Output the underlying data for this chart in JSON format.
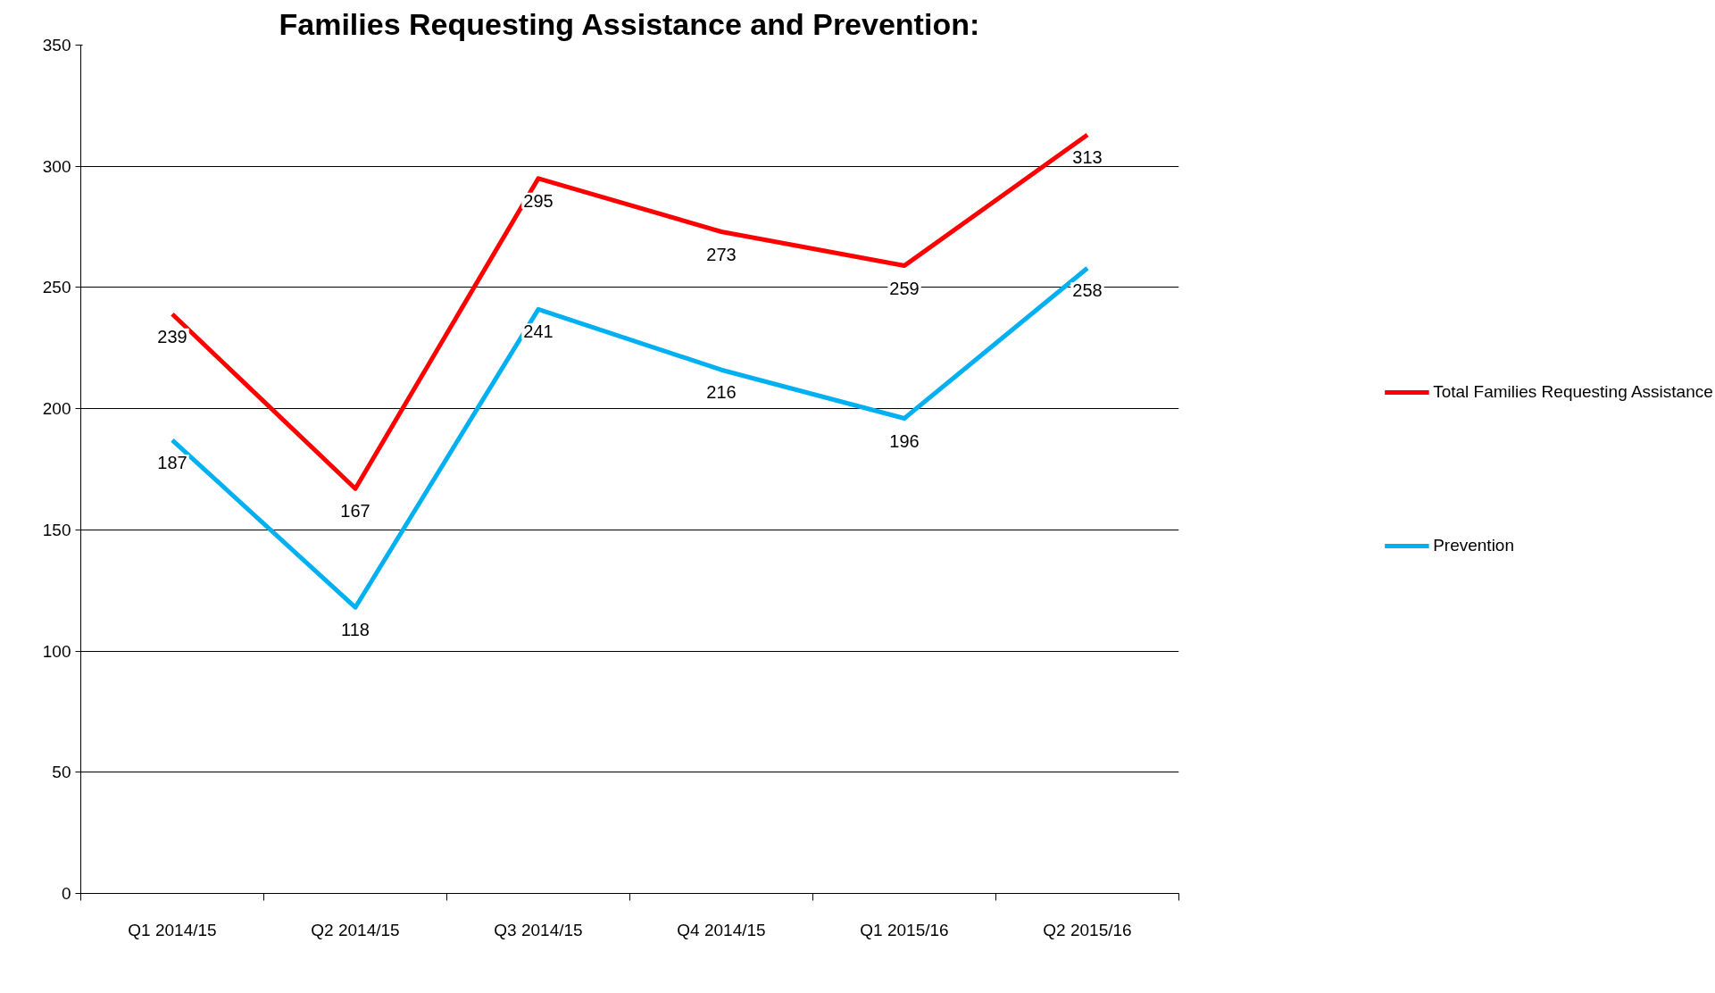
{
  "chart_data": {
    "type": "line",
    "title": "Families Requesting Assistance and Prevention:",
    "categories": [
      "Q1 2014/15",
      "Q2 2014/15",
      "Q3 2014/15",
      "Q4 2014/15",
      "Q1 2015/16",
      "Q2 2015/16"
    ],
    "series": [
      {
        "name": "Total Families Requesting Assistance",
        "color": "#ff0000",
        "values": [
          239,
          167,
          295,
          273,
          259,
          313
        ]
      },
      {
        "name": "Prevention",
        "color": "#00b0f0",
        "values": [
          187,
          118,
          241,
          216,
          196,
          258
        ]
      }
    ],
    "ylim": [
      0,
      350
    ],
    "yticks": [
      0,
      50,
      100,
      150,
      200,
      250,
      300,
      350
    ],
    "grid": "y",
    "legend": "right",
    "data_labels": true,
    "marker": "none",
    "line_style": "solid"
  }
}
